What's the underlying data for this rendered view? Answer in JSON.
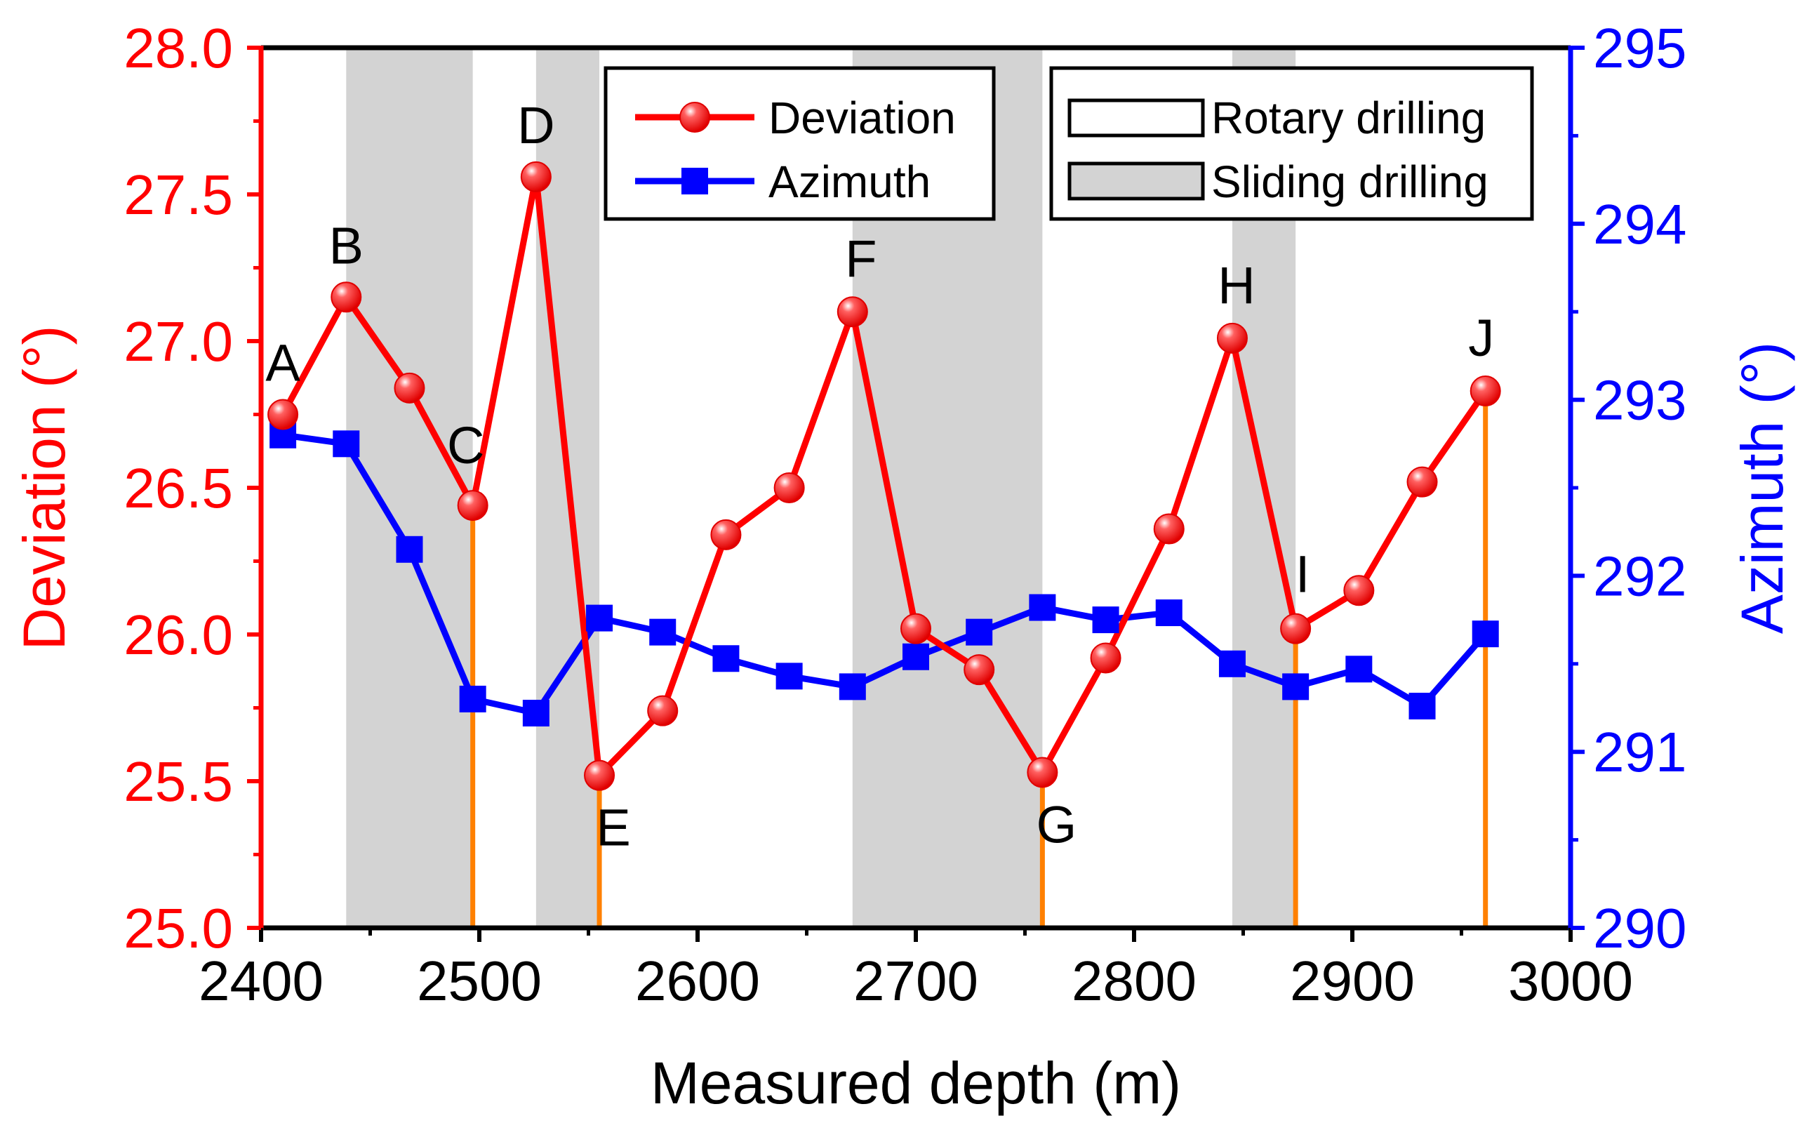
{
  "chart_data": {
    "type": "line",
    "xlabel": "Measured depth (m)",
    "ylabel_left": "Deviation (°)",
    "ylabel_right": "Azimuth (°)",
    "xlim": [
      2400,
      3000
    ],
    "ylim_left": [
      25.0,
      28.0
    ],
    "ylim_right": [
      290,
      295
    ],
    "x_ticks": [
      "2400",
      "2500",
      "2600",
      "2700",
      "2800",
      "2900",
      "3000"
    ],
    "y_left_ticks": [
      "25.0",
      "25.5",
      "26.0",
      "26.5",
      "27.0",
      "27.5",
      "28.0"
    ],
    "y_right_ticks": [
      "290",
      "291",
      "292",
      "293",
      "294",
      "295"
    ],
    "colors": {
      "deviation": "#ff0000",
      "azimuth": "#0000ff",
      "sliding_band": "#d3d3d3",
      "marker_lines": "#ff8000"
    },
    "series": [
      {
        "name": "Deviation",
        "axis": "left",
        "marker": "circle",
        "x": [
          2410,
          2439,
          2468,
          2497,
          2526,
          2555,
          2584,
          2613,
          2642,
          2671,
          2700,
          2729,
          2758,
          2787,
          2816,
          2845,
          2874,
          2903,
          2932,
          2961
        ],
        "values": [
          26.75,
          27.15,
          26.84,
          26.44,
          27.56,
          25.52,
          25.74,
          26.34,
          26.5,
          27.1,
          26.02,
          25.88,
          25.53,
          25.92,
          26.36,
          27.01,
          26.02,
          26.15,
          26.52,
          26.83
        ]
      },
      {
        "name": "Azimuth",
        "axis": "right",
        "marker": "square",
        "x": [
          2410,
          2439,
          2468,
          2497,
          2526,
          2555,
          2584,
          2613,
          2642,
          2671,
          2700,
          2729,
          2758,
          2787,
          2816,
          2845,
          2874,
          2903,
          2932,
          2961
        ],
        "values": [
          292.8,
          292.75,
          292.15,
          291.3,
          291.22,
          291.76,
          291.68,
          291.53,
          291.43,
          291.37,
          291.54,
          291.68,
          291.82,
          291.75,
          291.79,
          291.5,
          291.37,
          291.47,
          291.26,
          291.67
        ]
      }
    ],
    "sliding_intervals": [
      [
        2439,
        2497
      ],
      [
        2526,
        2555
      ],
      [
        2671,
        2758
      ],
      [
        2845,
        2874
      ]
    ],
    "vertical_markers": [
      {
        "x": 2497,
        "value": 26.44
      },
      {
        "x": 2555,
        "value": 25.52
      },
      {
        "x": 2758,
        "value": 25.53
      },
      {
        "x": 2874,
        "value": 26.02
      },
      {
        "x": 2961,
        "value": 26.83
      }
    ],
    "point_labels": [
      {
        "text": "A",
        "x": 2410,
        "value": 26.75
      },
      {
        "text": "B",
        "x": 2439,
        "value": 27.15
      },
      {
        "text": "C",
        "x": 2497,
        "value": 26.44
      },
      {
        "text": "D",
        "x": 2526,
        "value": 27.56
      },
      {
        "text": "E",
        "x": 2555,
        "value": 25.52
      },
      {
        "text": "F",
        "x": 2671,
        "value": 27.1
      },
      {
        "text": "G",
        "x": 2758,
        "value": 25.53
      },
      {
        "text": "H",
        "x": 2845,
        "value": 27.01
      },
      {
        "text": "I",
        "x": 2874,
        "value": 26.02
      },
      {
        "text": "J",
        "x": 2961,
        "value": 26.83
      }
    ],
    "legend": {
      "series": [
        "Deviation",
        "Azimuth"
      ],
      "patches": [
        "Rotary drilling",
        "Sliding drilling"
      ],
      "placement": "top"
    }
  }
}
